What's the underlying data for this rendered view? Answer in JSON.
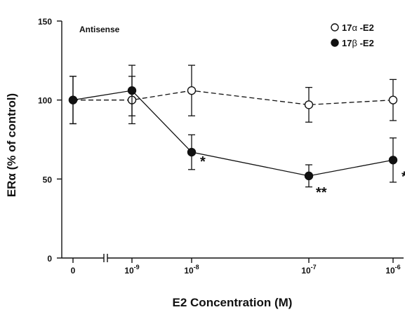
{
  "chart_data": {
    "type": "line",
    "panel_label": "Antisense",
    "xlabel": "E2 Concentration (M)",
    "ylabel": "ERα (% of control)",
    "ylim": [
      0,
      150
    ],
    "y_ticks": [
      "0",
      "50",
      "100",
      "150"
    ],
    "x_categories": [
      {
        "base": "0",
        "exp": ""
      },
      {
        "base": "10",
        "exp": "-9"
      },
      {
        "base": "10",
        "exp": "-8"
      },
      {
        "base": "10",
        "exp": "-7"
      },
      {
        "base": "10",
        "exp": "-6"
      }
    ],
    "axis_break": true,
    "series": [
      {
        "name": "17α-E2",
        "legend_prefix": "17",
        "legend_greek": "α",
        "legend_suffix": "-E2",
        "marker": "open-circle",
        "line_style": "dashed",
        "values": [
          100,
          100,
          106,
          97,
          100
        ],
        "errors": [
          15,
          15,
          16,
          11,
          13
        ]
      },
      {
        "name": "17β-E2",
        "legend_prefix": "17",
        "legend_greek": "β",
        "legend_suffix": "-E2",
        "marker": "filled-circle",
        "line_style": "solid",
        "values": [
          100,
          106,
          67,
          52,
          62
        ],
        "errors": [
          15,
          16,
          11,
          7,
          14
        ]
      }
    ],
    "annotations": [
      {
        "text": "*",
        "series": 1,
        "index": 2
      },
      {
        "text": "**",
        "series": 1,
        "index": 3
      },
      {
        "text": "*",
        "series": 1,
        "index": 4
      }
    ],
    "legend_position": "top-right",
    "grid": false
  }
}
